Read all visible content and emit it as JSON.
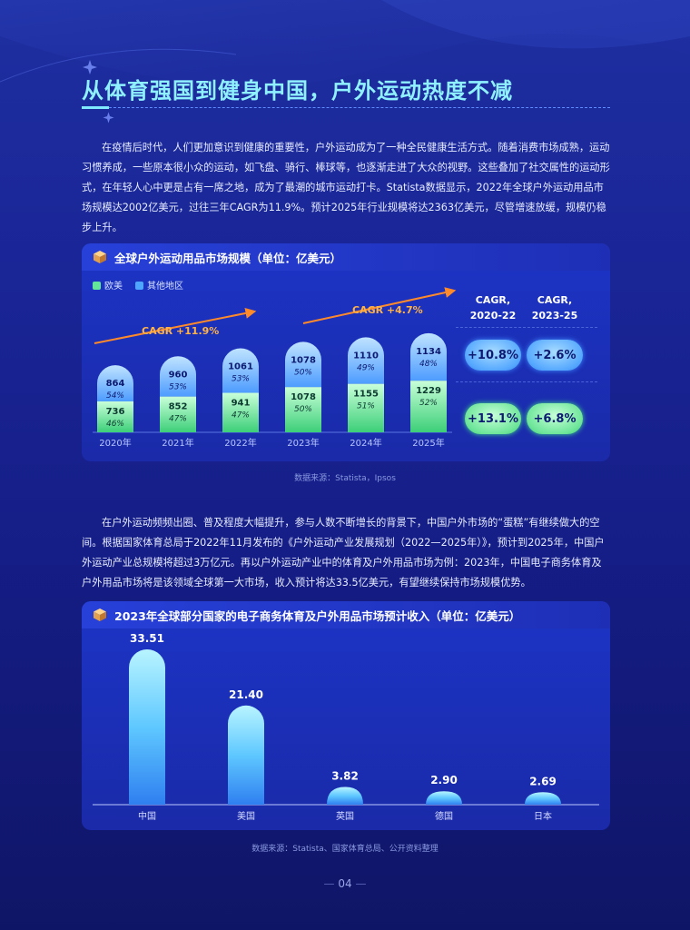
{
  "title": "从体育强国到健身中国，户外运动热度不减",
  "para1": "在疫情后时代，人们更加意识到健康的重要性，户外运动成为了一种全民健康生活方式。随着消费市场成熟，运动习惯养成，一些原本很小众的运动，如飞盘、骑行、棒球等，也逐渐走进了大众的视野。这些叠加了社交属性的运动形式，在年轻人心中更是占有一席之地，成为了最潮的城市运动打卡。Statista数据显示，2022年全球户外运动用品市场规模达2002亿美元，过往三年CAGR为11.9%。预计2025年行业规模将达2363亿美元，尽管增速放缓，规模仍稳步上升。",
  "para2": "在户外运动频频出圈、普及程度大幅提升，参与人数不断增长的背景下，中国户外市场的“蛋糕”有继续做大的空间。根据国家体育总局于2022年11月发布的《户外运动产业发展规划（2022—2025年）》，预计到2025年，中国户外运动产业总规模将超过3万亿元。再以户外运动产业中的体育及户外用品市场为例：2023年，中国电子商务体育及户外用品市场将是该领域全球第一大市场，收入预计将达33.5亿美元，有望继续保持市场规模优势。",
  "chart1_title": "全球户外运动用品市场规模（单位：亿美元）",
  "chart1_legend": [
    "欧美",
    "其他地区"
  ],
  "chart1_cagr_label_1": "CAGR +11.9%",
  "chart1_cagr_label_2": "CAGR +4.7%",
  "cagr_head_1": "CAGR,",
  "cagr_head_1b": "2020-22",
  "cagr_head_2": "CAGR,",
  "cagr_head_2b": "2023-25",
  "cagr_other_1": "+10.8%",
  "cagr_other_2": "+2.6%",
  "cagr_eu_1": "+13.1%",
  "cagr_eu_2": "+6.8%",
  "source1": "数据来源：Statista，Ipsos",
  "chart2_title": "2023年全球部分国家的电子商务体育及户外用品市场预计收入（单位：亿美元）",
  "source2": "数据来源：Statista、国家体育总局、公开资料整理",
  "page_number": "04",
  "colors": {
    "green": "#63e69a",
    "blue": "#4fa6ff",
    "title": "#8ff0ff"
  },
  "chart_data": [
    {
      "type": "bar",
      "title": "全球户外运动用品市场规模（单位：亿美元）",
      "categories": [
        "2020年",
        "2021年",
        "2022年",
        "2023年",
        "2024年",
        "2025年"
      ],
      "series": [
        {
          "name": "欧美",
          "values": [
            736,
            852,
            941,
            1078,
            1155,
            1229
          ],
          "pct": [
            "46%",
            "47%",
            "47%",
            "50%",
            "51%",
            "52%"
          ]
        },
        {
          "name": "其他地区",
          "values": [
            864,
            960,
            1061,
            1078,
            1110,
            1134
          ],
          "pct": [
            "54%",
            "53%",
            "53%",
            "50%",
            "49%",
            "48%"
          ]
        }
      ],
      "stacked": true
    },
    {
      "type": "bar",
      "title": "2023年全球部分国家的电子商务体育及户外用品市场预计收入（单位：亿美元）",
      "categories": [
        "中国",
        "美国",
        "英国",
        "德国",
        "日本"
      ],
      "values": [
        33.51,
        21.4,
        3.82,
        2.9,
        2.69
      ],
      "labels": [
        "33.51",
        "21.40",
        "3.82",
        "2.90",
        "2.69"
      ]
    }
  ]
}
